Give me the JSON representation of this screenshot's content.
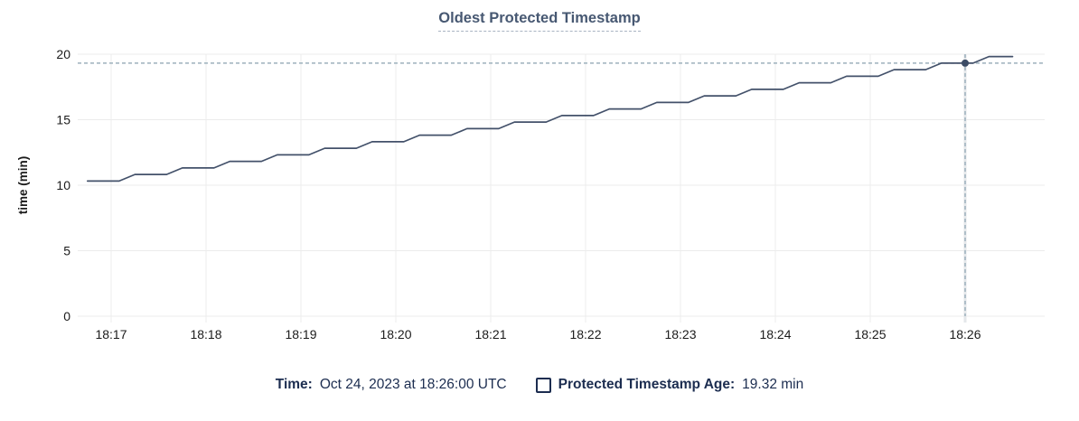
{
  "title": "Oldest Protected Timestamp",
  "legend": {
    "time_label": "Time:",
    "time_value": "Oct 24, 2023 at 18:26:00 UTC",
    "series_label": "Protected Timestamp Age:",
    "series_value": "19.32 min"
  },
  "colors": {
    "line": "#43516a",
    "marker": "#3c4c66",
    "title_text": "#475872",
    "legend_text": "#1c2d50",
    "axis_text": "#1b1b1b",
    "grid": "#ececec",
    "crosshair": "#9db1bc",
    "hover_band": "#e4e7ea"
  },
  "chart_data": {
    "type": "line",
    "title": "Oldest Protected Timestamp",
    "xlabel": "",
    "ylabel": "time (min)",
    "ylim": [
      0,
      20
    ],
    "y_ticks": [
      0,
      5,
      10,
      15,
      20
    ],
    "x_ticks": [
      "18:17",
      "18:18",
      "18:19",
      "18:20",
      "18:21",
      "18:22",
      "18:23",
      "18:24",
      "18:25",
      "18:26"
    ],
    "grid": true,
    "legend_position": "bottom",
    "series": [
      {
        "name": "Protected Timestamp Age",
        "unit": "min",
        "points": [
          [
            "18:16:45",
            10.32
          ],
          [
            "18:17:05",
            10.32
          ],
          [
            "18:17:15",
            10.82
          ],
          [
            "18:17:35",
            10.82
          ],
          [
            "18:17:45",
            11.32
          ],
          [
            "18:18:05",
            11.32
          ],
          [
            "18:18:15",
            11.82
          ],
          [
            "18:18:35",
            11.82
          ],
          [
            "18:18:45",
            12.32
          ],
          [
            "18:19:05",
            12.32
          ],
          [
            "18:19:15",
            12.82
          ],
          [
            "18:19:35",
            12.82
          ],
          [
            "18:19:45",
            13.32
          ],
          [
            "18:20:05",
            13.32
          ],
          [
            "18:20:15",
            13.82
          ],
          [
            "18:20:35",
            13.82
          ],
          [
            "18:20:45",
            14.32
          ],
          [
            "18:21:05",
            14.32
          ],
          [
            "18:21:15",
            14.82
          ],
          [
            "18:21:35",
            14.82
          ],
          [
            "18:21:45",
            15.32
          ],
          [
            "18:22:05",
            15.32
          ],
          [
            "18:22:15",
            15.82
          ],
          [
            "18:22:35",
            15.82
          ],
          [
            "18:22:45",
            16.32
          ],
          [
            "18:23:05",
            16.32
          ],
          [
            "18:23:15",
            16.82
          ],
          [
            "18:23:35",
            16.82
          ],
          [
            "18:23:45",
            17.32
          ],
          [
            "18:24:05",
            17.32
          ],
          [
            "18:24:15",
            17.82
          ],
          [
            "18:24:35",
            17.82
          ],
          [
            "18:24:45",
            18.32
          ],
          [
            "18:25:05",
            18.32
          ],
          [
            "18:25:15",
            18.82
          ],
          [
            "18:25:35",
            18.82
          ],
          [
            "18:25:45",
            19.32
          ],
          [
            "18:26:05",
            19.32
          ],
          [
            "18:26:15",
            19.82
          ],
          [
            "18:26:30",
            19.82
          ]
        ]
      }
    ],
    "highlight": {
      "time": "18:26:00",
      "value": 19.32,
      "crosshair": true
    }
  }
}
